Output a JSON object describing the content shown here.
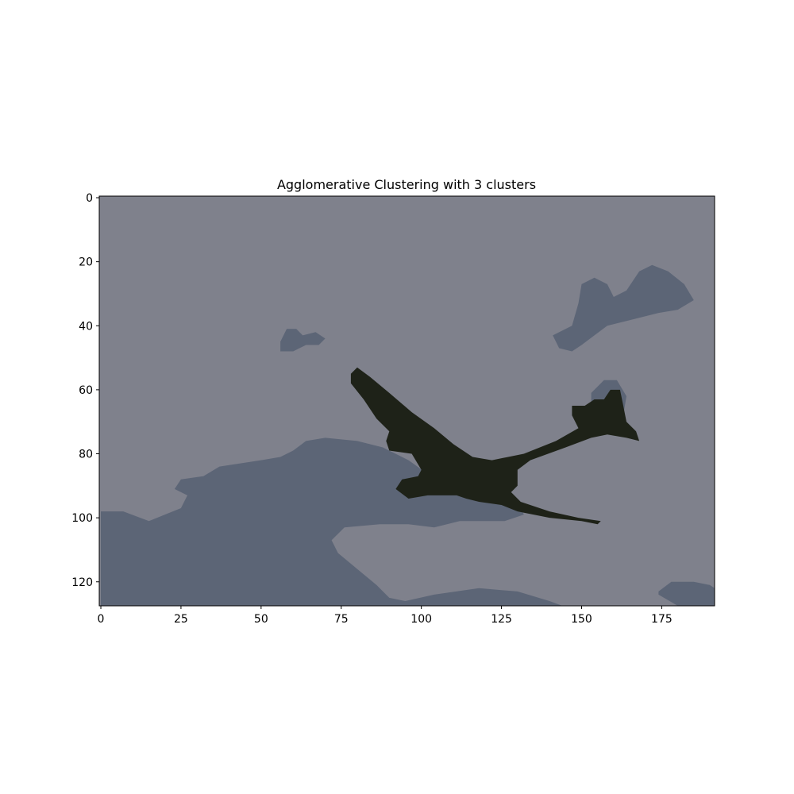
{
  "chart_data": {
    "type": "heatmap",
    "title": "Agglomerative Clustering with 3 clusters",
    "xlabel": "",
    "ylabel": "",
    "image_width": 192,
    "image_height": 128,
    "xlim": [
      -0.5,
      191.5
    ],
    "ylim": [
      127.5,
      -0.5
    ],
    "xticks": [
      0,
      25,
      50,
      75,
      100,
      125,
      150,
      175
    ],
    "yticks": [
      0,
      20,
      40,
      60,
      80,
      100,
      120
    ],
    "grid": false,
    "clusters": [
      {
        "name": "sky",
        "color": "#7f818c"
      },
      {
        "name": "cloud",
        "color": "#5c6576"
      },
      {
        "name": "plane",
        "color": "#1e2218"
      }
    ],
    "regions": [
      {
        "cluster": "cloud",
        "points": [
          [
            0,
            98
          ],
          [
            7,
            98
          ],
          [
            15,
            101
          ],
          [
            20,
            99
          ],
          [
            25,
            97
          ],
          [
            27,
            93
          ],
          [
            23,
            91
          ],
          [
            25,
            88
          ],
          [
            32,
            87
          ],
          [
            37,
            84
          ],
          [
            50,
            82
          ],
          [
            56,
            81
          ],
          [
            60,
            79
          ],
          [
            64,
            76
          ],
          [
            70,
            75
          ],
          [
            80,
            76
          ],
          [
            88,
            78
          ],
          [
            96,
            82
          ],
          [
            103,
            87
          ],
          [
            113,
            93
          ],
          [
            120,
            94
          ],
          [
            130,
            95
          ],
          [
            132,
            99
          ],
          [
            126,
            101
          ],
          [
            112,
            101
          ],
          [
            104,
            103
          ],
          [
            96,
            102
          ],
          [
            87,
            102
          ],
          [
            76,
            103
          ],
          [
            72,
            107
          ],
          [
            74,
            111
          ],
          [
            80,
            116
          ],
          [
            86,
            121
          ],
          [
            90,
            125
          ],
          [
            95,
            126
          ],
          [
            104,
            124
          ],
          [
            118,
            122
          ],
          [
            130,
            123
          ],
          [
            140,
            126
          ],
          [
            144,
            127.5
          ],
          [
            0,
            127.5
          ]
        ]
      },
      {
        "cluster": "cloud",
        "points": [
          [
            56,
            45
          ],
          [
            58,
            41
          ],
          [
            61,
            41
          ],
          [
            63,
            43
          ],
          [
            67,
            42
          ],
          [
            70,
            44
          ],
          [
            68,
            46
          ],
          [
            64,
            46
          ],
          [
            60,
            48
          ],
          [
            56,
            48
          ]
        ]
      },
      {
        "cluster": "cloud",
        "points": [
          [
            141,
            43
          ],
          [
            147,
            40
          ],
          [
            149,
            33
          ],
          [
            150,
            27
          ],
          [
            154,
            25
          ],
          [
            158,
            27
          ],
          [
            160,
            31
          ],
          [
            164,
            29
          ],
          [
            168,
            23
          ],
          [
            172,
            21
          ],
          [
            177,
            23
          ],
          [
            182,
            27
          ],
          [
            185,
            32
          ],
          [
            180,
            35
          ],
          [
            174,
            36
          ],
          [
            166,
            38
          ],
          [
            158,
            40
          ],
          [
            154,
            43
          ],
          [
            150,
            46
          ],
          [
            147,
            48
          ],
          [
            143,
            47
          ]
        ]
      },
      {
        "cluster": "cloud",
        "points": [
          [
            153,
            61
          ],
          [
            157,
            57
          ],
          [
            161,
            57
          ],
          [
            164,
            62
          ],
          [
            163,
            68
          ],
          [
            158,
            70
          ],
          [
            153,
            67
          ]
        ]
      },
      {
        "cluster": "cloud",
        "points": [
          [
            174,
            123
          ],
          [
            178,
            120
          ],
          [
            185,
            120
          ],
          [
            190,
            121
          ],
          [
            191.5,
            122
          ],
          [
            191.5,
            127.5
          ],
          [
            180,
            127.5
          ],
          [
            174,
            124
          ]
        ]
      },
      {
        "cluster": "plane",
        "points": [
          [
            78,
            55
          ],
          [
            80,
            53
          ],
          [
            84,
            56
          ],
          [
            90,
            61
          ],
          [
            97,
            67
          ],
          [
            104,
            72
          ],
          [
            110,
            77
          ],
          [
            116,
            81
          ],
          [
            122,
            82
          ],
          [
            132,
            80
          ],
          [
            142,
            76
          ],
          [
            149,
            72
          ],
          [
            147,
            68
          ],
          [
            147,
            65
          ],
          [
            151,
            65
          ],
          [
            154,
            63
          ],
          [
            157,
            63
          ],
          [
            159,
            60
          ],
          [
            162,
            60
          ],
          [
            163,
            65
          ],
          [
            164,
            70
          ],
          [
            167,
            73
          ],
          [
            168,
            76
          ],
          [
            164,
            75
          ],
          [
            158,
            74
          ],
          [
            153,
            75
          ],
          [
            145,
            78
          ],
          [
            134,
            82
          ],
          [
            130,
            85
          ],
          [
            130,
            90
          ],
          [
            128,
            92
          ],
          [
            131,
            95
          ],
          [
            140,
            98
          ],
          [
            149,
            100
          ],
          [
            156,
            101
          ],
          [
            155,
            102
          ],
          [
            150,
            101
          ],
          [
            140,
            100
          ],
          [
            130,
            98
          ],
          [
            125,
            96
          ],
          [
            118,
            95
          ],
          [
            114,
            94
          ],
          [
            111,
            93
          ],
          [
            102,
            93
          ],
          [
            96,
            94
          ],
          [
            92,
            91
          ],
          [
            94,
            88
          ],
          [
            99,
            87
          ],
          [
            100,
            85
          ],
          [
            97,
            80
          ],
          [
            90,
            79
          ],
          [
            89,
            76
          ],
          [
            90,
            73
          ],
          [
            86,
            69
          ],
          [
            82,
            63
          ],
          [
            78,
            58
          ]
        ]
      }
    ]
  }
}
